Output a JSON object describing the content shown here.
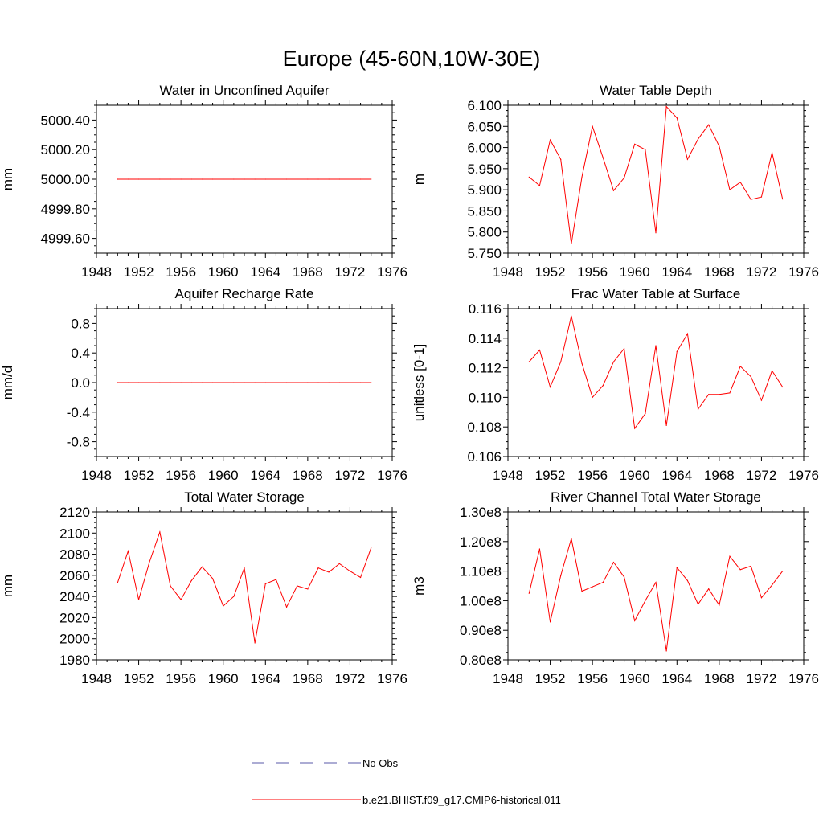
{
  "figure_title": "Europe (45-60N,10W-30E)",
  "legend": {
    "entries": [
      {
        "label": "No Obs",
        "color": "#5a5aa8",
        "style": "dashed"
      },
      {
        "label": "b.e21.BHIST.f09_g17.CMIP6-historical.011",
        "color": "#ff0000",
        "style": "solid"
      }
    ]
  },
  "colors": {
    "series": "#ff0000",
    "axis": "#000000"
  },
  "chart_data": [
    {
      "type": "line",
      "title": "Water in Unconfined Aquifer",
      "ylabel": "mm",
      "xlim": [
        1948,
        1976
      ],
      "xticks": [
        1948,
        1952,
        1956,
        1960,
        1964,
        1968,
        1972,
        1976
      ],
      "ylim": [
        4999.5,
        5000.5
      ],
      "yticks": [
        4999.6,
        4999.8,
        5000.0,
        5000.2,
        5000.4
      ],
      "ytick_labels": [
        "4999.60",
        "4999.80",
        "5000.00",
        "5000.20",
        "5000.40"
      ],
      "x": [
        1950,
        1951,
        1952,
        1953,
        1954,
        1955,
        1956,
        1957,
        1958,
        1959,
        1960,
        1961,
        1962,
        1963,
        1964,
        1965,
        1966,
        1967,
        1968,
        1969,
        1970,
        1971,
        1972,
        1973,
        1974
      ],
      "series": [
        {
          "name": "b.e21.BHIST.f09_g17.CMIP6-historical.011",
          "values": [
            5000,
            5000,
            5000,
            5000,
            5000,
            5000,
            5000,
            5000,
            5000,
            5000,
            5000,
            5000,
            5000,
            5000,
            5000,
            5000,
            5000,
            5000,
            5000,
            5000,
            5000,
            5000,
            5000,
            5000,
            5000
          ]
        }
      ]
    },
    {
      "type": "line",
      "title": "Water Table Depth",
      "ylabel": "m",
      "xlim": [
        1948,
        1976
      ],
      "xticks": [
        1948,
        1952,
        1956,
        1960,
        1964,
        1968,
        1972,
        1976
      ],
      "ylim": [
        5.75,
        6.1
      ],
      "yticks": [
        5.75,
        5.8,
        5.85,
        5.9,
        5.95,
        6.0,
        6.05,
        6.1
      ],
      "ytick_labels": [
        "5.750",
        "5.800",
        "5.850",
        "5.900",
        "5.950",
        "6.000",
        "6.050",
        "6.100"
      ],
      "x": [
        1950,
        1951,
        1952,
        1953,
        1954,
        1955,
        1956,
        1957,
        1958,
        1959,
        1960,
        1961,
        1962,
        1963,
        1964,
        1965,
        1966,
        1967,
        1968,
        1969,
        1970,
        1971,
        1972,
        1973,
        1974
      ],
      "series": [
        {
          "name": "b.e21.BHIST.f09_g17.CMIP6-historical.011",
          "values": [
            5.93,
            5.91,
            6.018,
            5.972,
            5.772,
            5.93,
            6.05,
            5.976,
            5.898,
            5.928,
            6.008,
            5.995,
            5.798,
            6.097,
            6.07,
            5.972,
            6.02,
            6.054,
            6.003,
            5.9,
            5.918,
            5.877,
            5.883,
            5.988,
            5.878
          ]
        }
      ]
    },
    {
      "type": "line",
      "title": "Aquifer Recharge Rate",
      "ylabel": "mm/d",
      "xlim": [
        1948,
        1976
      ],
      "xticks": [
        1948,
        1952,
        1956,
        1960,
        1964,
        1968,
        1972,
        1976
      ],
      "ylim": [
        -1.0,
        1.0
      ],
      "yticks": [
        -0.8,
        -0.4,
        0.0,
        0.4,
        0.8
      ],
      "ytick_labels": [
        "-0.8",
        "-0.4",
        "0.0",
        "0.4",
        "0.8"
      ],
      "x": [
        1950,
        1951,
        1952,
        1953,
        1954,
        1955,
        1956,
        1957,
        1958,
        1959,
        1960,
        1961,
        1962,
        1963,
        1964,
        1965,
        1966,
        1967,
        1968,
        1969,
        1970,
        1971,
        1972,
        1973,
        1974
      ],
      "series": [
        {
          "name": "b.e21.BHIST.f09_g17.CMIP6-historical.011",
          "values": [
            0,
            0,
            0,
            0,
            0,
            0,
            0,
            0,
            0,
            0,
            0,
            0,
            0,
            0,
            0,
            0,
            0,
            0,
            0,
            0,
            0,
            0,
            0,
            0,
            0
          ]
        }
      ]
    },
    {
      "type": "line",
      "title": "Frac Water Table at Surface",
      "ylabel": "unitless [0-1]",
      "xlim": [
        1948,
        1976
      ],
      "xticks": [
        1948,
        1952,
        1956,
        1960,
        1964,
        1968,
        1972,
        1976
      ],
      "ylim": [
        0.106,
        0.116
      ],
      "yticks": [
        0.106,
        0.108,
        0.11,
        0.112,
        0.114,
        0.116
      ],
      "ytick_labels": [
        "0.106",
        "0.108",
        "0.110",
        "0.112",
        "0.114",
        "0.116"
      ],
      "x": [
        1950,
        1951,
        1952,
        1953,
        1954,
        1955,
        1956,
        1957,
        1958,
        1959,
        1960,
        1961,
        1962,
        1963,
        1964,
        1965,
        1966,
        1967,
        1968,
        1969,
        1970,
        1971,
        1972,
        1973,
        1974
      ],
      "series": [
        {
          "name": "b.e21.BHIST.f09_g17.CMIP6-historical.011",
          "values": [
            0.1124,
            0.1132,
            0.1107,
            0.1124,
            0.1155,
            0.1123,
            0.11,
            0.1108,
            0.1124,
            0.1133,
            0.1079,
            0.1089,
            0.1135,
            0.1081,
            0.1131,
            0.1143,
            0.1092,
            0.1102,
            0.1102,
            0.1103,
            0.1121,
            0.1114,
            0.1098,
            0.1118,
            0.1107
          ]
        }
      ]
    },
    {
      "type": "line",
      "title": "Total Water Storage",
      "ylabel": "mm",
      "xlim": [
        1948,
        1976
      ],
      "xticks": [
        1948,
        1952,
        1956,
        1960,
        1964,
        1968,
        1972,
        1976
      ],
      "ylim": [
        1980,
        2120
      ],
      "yticks": [
        1980,
        2000,
        2020,
        2040,
        2060,
        2080,
        2100,
        2120
      ],
      "ytick_labels": [
        "1980",
        "2000",
        "2020",
        "2040",
        "2060",
        "2080",
        "2100",
        "2120"
      ],
      "x": [
        1950,
        1951,
        1952,
        1953,
        1954,
        1955,
        1956,
        1957,
        1958,
        1959,
        1960,
        1961,
        1962,
        1963,
        1964,
        1965,
        1966,
        1967,
        1968,
        1969,
        1970,
        1971,
        1972,
        1973,
        1974
      ],
      "series": [
        {
          "name": "b.e21.BHIST.f09_g17.CMIP6-historical.011",
          "values": [
            2053,
            2083,
            2037,
            2072,
            2101,
            2050,
            2037,
            2055,
            2068,
            2057,
            2031,
            2040,
            2067,
            1996,
            2052,
            2056,
            2030,
            2050,
            2047,
            2067,
            2063,
            2071,
            2064,
            2058,
            2086
          ]
        }
      ]
    },
    {
      "type": "line",
      "title": "River Channel Total Water Storage",
      "ylabel": "m3",
      "xlim": [
        1948,
        1976
      ],
      "xticks": [
        1948,
        1952,
        1956,
        1960,
        1964,
        1968,
        1972,
        1976
      ],
      "ylim": [
        0.8,
        1.3
      ],
      "yticks": [
        0.8,
        0.9,
        1.0,
        1.1,
        1.2,
        1.3
      ],
      "ytick_labels": [
        "0.80e8",
        "0.90e8",
        "1.00e8",
        "1.10e8",
        "1.20e8",
        "1.30e8"
      ],
      "value_scale": "e8",
      "x": [
        1950,
        1951,
        1952,
        1953,
        1954,
        1955,
        1956,
        1957,
        1958,
        1959,
        1960,
        1961,
        1962,
        1963,
        1964,
        1965,
        1966,
        1967,
        1968,
        1969,
        1970,
        1971,
        1972,
        1973,
        1974
      ],
      "series": [
        {
          "name": "b.e21.BHIST.f09_g17.CMIP6-historical.011",
          "values": [
            1.025,
            1.175,
            0.928,
            1.085,
            1.21,
            1.032,
            1.047,
            1.062,
            1.13,
            1.08,
            0.932,
            1.0,
            1.062,
            0.83,
            1.112,
            1.068,
            0.988,
            1.04,
            0.985,
            1.15,
            1.105,
            1.117,
            1.01,
            1.053,
            1.1
          ]
        }
      ]
    }
  ]
}
